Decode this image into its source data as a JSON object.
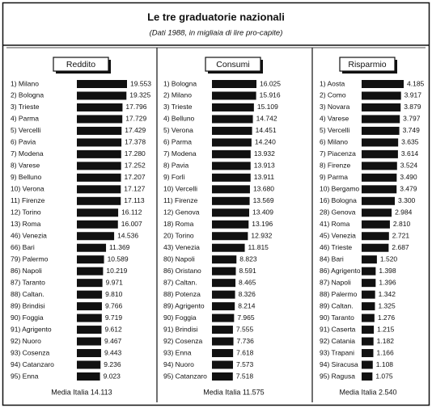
{
  "title": "Le tre graduatorie nazionali",
  "subtitle": "(Dati 1988, in migliaia di lire pro-capite)",
  "chart_data": [
    {
      "type": "bar",
      "orientation": "horizontal",
      "title": "Reddito",
      "color": "#111111",
      "categories": [
        "1) Milano",
        "2) Bologna",
        "3) Trieste",
        "4) Parma",
        "5) Vercelli",
        "6) Pavia",
        "7) Modena",
        "8) Varese",
        "9) Belluno",
        "10) Verona",
        "11) Firenze",
        "12) Torino",
        "13) Roma",
        "46) Venezia",
        "66) Bari",
        "79) Palermo",
        "86) Napoli",
        "87) Taranto",
        "88) Caltan.",
        "89) Brindisi",
        "90) Foggia",
        "91) Agrigento",
        "92) Nuoro",
        "93) Cosenza",
        "94) Catanzaro",
        "95) Enna"
      ],
      "values": [
        19553,
        19325,
        17796,
        17729,
        17429,
        17378,
        17280,
        17252,
        17207,
        17127,
        17113,
        16112,
        16007,
        14536,
        11369,
        10589,
        10219,
        9971,
        9810,
        9766,
        9719,
        9612,
        9467,
        9443,
        9236,
        9023
      ],
      "value_labels": [
        "19.553",
        "19.325",
        "17.796",
        "17.729",
        "17.429",
        "17.378",
        "17.280",
        "17.252",
        "17.207",
        "17.127",
        "17.113",
        "16.112",
        "16.007",
        "14.536",
        "11.369",
        "10.589",
        "10.219",
        "9.971",
        "9.810",
        "9.766",
        "9.719",
        "9.612",
        "9.467",
        "9.443",
        "9.236",
        "9.023"
      ],
      "note": "Media Italia 14.113"
    },
    {
      "type": "bar",
      "orientation": "horizontal",
      "title": "Consumi",
      "color": "#111111",
      "categories": [
        "1) Bologna",
        "2) Milano",
        "3) Trieste",
        "4) Belluno",
        "5) Verona",
        "6) Parma",
        "7) Modena",
        "8) Pavia",
        "9) Forlì",
        "10) Vercelli",
        "11) Firenze",
        "12) Genova",
        "18) Roma",
        "20) Torino",
        "43) Venezia",
        "80) Napoli",
        "86) Oristano",
        "87) Caltan.",
        "88) Potenza",
        "89) Agrigento",
        "90) Foggia",
        "91) Brindisi",
        "92) Cosenza",
        "93) Enna",
        "94) Nuoro",
        "95) Catanzaro"
      ],
      "values": [
        16025,
        15916,
        15109,
        14742,
        14451,
        14240,
        13932,
        13913,
        13911,
        13680,
        13569,
        13409,
        13196,
        12932,
        11815,
        8823,
        8591,
        8465,
        8326,
        8214,
        7965,
        7555,
        7736,
        7618,
        7573,
        7518
      ],
      "value_labels": [
        "16.025",
        "15.916",
        "15.109",
        "14.742",
        "14.451",
        "14.240",
        "13.932",
        "13.913",
        "13.911",
        "13.680",
        "13.569",
        "13.409",
        "13.196",
        "12.932",
        "11.815",
        "8.823",
        "8.591",
        "8.465",
        "8.326",
        "8.214",
        "7.965",
        "7.555",
        "7.736",
        "7.618",
        "7.573",
        "7.518"
      ],
      "note": "Media Italia 11.575"
    },
    {
      "type": "bar",
      "orientation": "horizontal",
      "title": "Risparmio",
      "color": "#111111",
      "categories": [
        "1) Aosta",
        "2) Como",
        "3) Novara",
        "4) Varese",
        "5) Vercelli",
        "6) Milano",
        "7) Piacenza",
        "8) Firenze",
        "9) Parma",
        "10) Bergamo",
        "16) Bologna",
        "28) Genova",
        "41) Roma",
        "45) Venezia",
        "46) Trieste",
        "84) Bari",
        "86) Agrigento",
        "87) Napoli",
        "88) Palermo",
        "89) Caltan.",
        "90) Taranto",
        "91) Caserta",
        "92) Catania",
        "93) Trapani",
        "94) Siracusa",
        "95) Ragusa"
      ],
      "values": [
        4185,
        3917,
        3879,
        3797,
        3749,
        3635,
        3614,
        3524,
        3490,
        3479,
        3300,
        2984,
        2810,
        2721,
        2687,
        1520,
        1398,
        1396,
        1342,
        1325,
        1276,
        1215,
        1182,
        1166,
        1108,
        1075
      ],
      "value_labels": [
        "4.185",
        "3.917",
        "3.879",
        "3.797",
        "3.749",
        "3.635",
        "3.614",
        "3.524",
        "3.490",
        "3.479",
        "3.300",
        "2.984",
        "2.810",
        "2.721",
        "2.687",
        "1.520",
        "1.398",
        "1.396",
        "1.342",
        "1.325",
        "1.276",
        "1.215",
        "1.182",
        "1.166",
        "1.108",
        "1.075"
      ],
      "note": "Media Italia 2.540"
    }
  ]
}
